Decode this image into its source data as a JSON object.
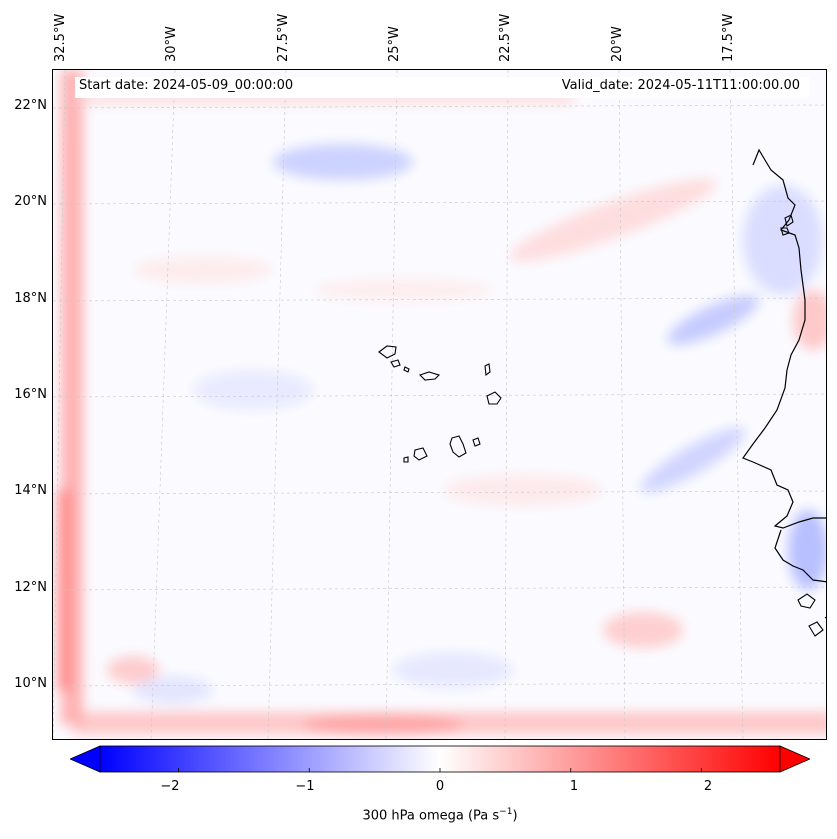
{
  "map": {
    "start_date": "Start date: 2024-05-09_00:00:00",
    "valid_date": "Valid_date: 2024-05-11T11:00:00.00",
    "lon_labels": [
      "32.5°W",
      "30°W",
      "27.5°W",
      "25°W",
      "22.5°W",
      "20°W",
      "17.5°W"
    ],
    "lat_labels": [
      "22°N",
      "20°N",
      "18°N",
      "16°N",
      "14°N",
      "12°N",
      "10°N"
    ],
    "variable": "300 hPa omega"
  },
  "colorbar": {
    "ticks": [
      "−2",
      "−1",
      "0",
      "1",
      "2"
    ],
    "tick_values": [
      -2,
      -1,
      0,
      1,
      2
    ],
    "range": [
      -2.6,
      2.6
    ],
    "label_main": "300 hPa omega (Pa s",
    "label_exp": "−1",
    "label_close": ")",
    "colormap": "bwr",
    "low_color": "#0000ff",
    "mid_color": "#ffffff",
    "high_color": "#ff0000"
  }
}
